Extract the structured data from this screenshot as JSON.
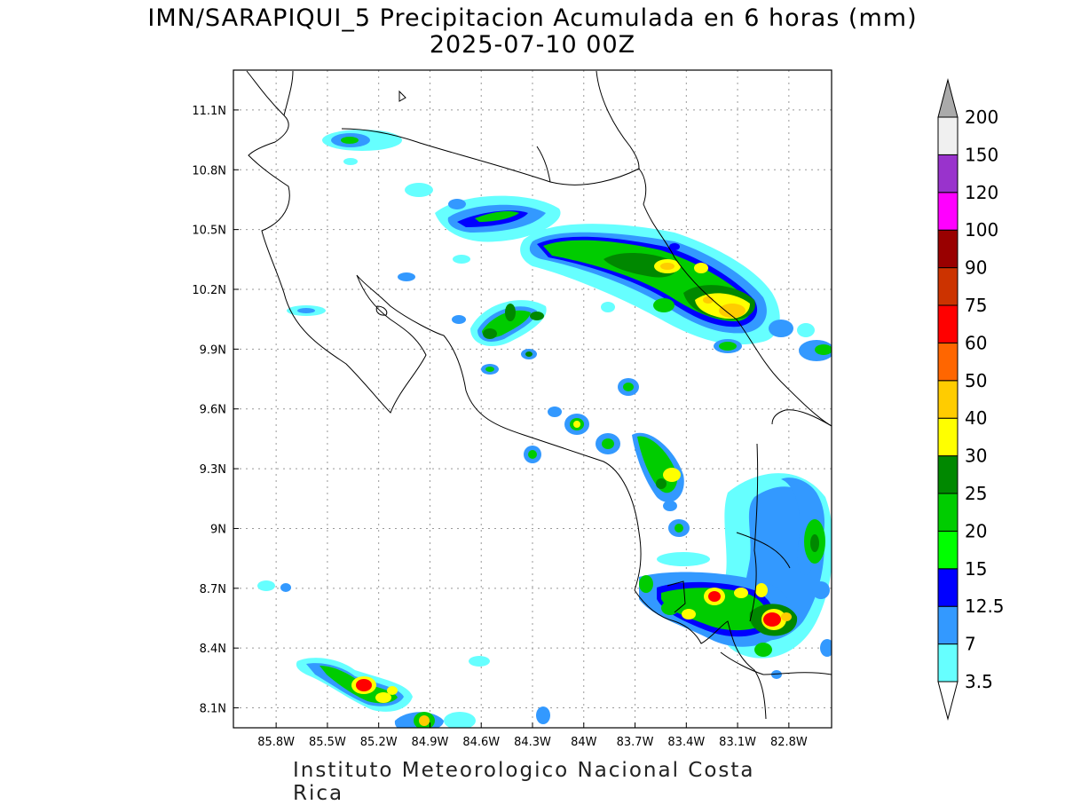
{
  "title_line1": "IMN/SARAPIQUI_5 Precipitacion Acumulada en 6 horas (mm)",
  "title_line2": "2025-07-10 00Z",
  "footer": "Instituto Meteorologico Nacional Costa Rica",
  "map": {
    "lon_range": [
      -86.05,
      -82.55
    ],
    "lat_range": [
      8.0,
      11.3
    ],
    "lon_ticks": [
      "85.8W",
      "85.5W",
      "85.2W",
      "84.9W",
      "84.6W",
      "84.3W",
      "84W",
      "83.7W",
      "83.4W",
      "83.1W",
      "82.8W"
    ],
    "lat_ticks": [
      "11.1N",
      "10.8N",
      "10.5N",
      "10.2N",
      "9.9N",
      "9.6N",
      "9.3N",
      "9N",
      "8.7N",
      "8.4N",
      "8.1N"
    ]
  },
  "colorbar": {
    "levels": [
      "3.5",
      "7",
      "12.5",
      "15",
      "20",
      "25",
      "30",
      "40",
      "50",
      "60",
      "75",
      "90",
      "100",
      "120",
      "150",
      "200"
    ],
    "colors": [
      "#ffffff",
      "#66ffff",
      "#3399ff",
      "#0000ff",
      "#00ff00",
      "#00cc00",
      "#008800",
      "#ffff00",
      "#ffcc00",
      "#ff6600",
      "#ff0000",
      "#cc3300",
      "#990000",
      "#ff00ff",
      "#9933cc",
      "#f0f0f0",
      "#aaaaaa"
    ]
  }
}
